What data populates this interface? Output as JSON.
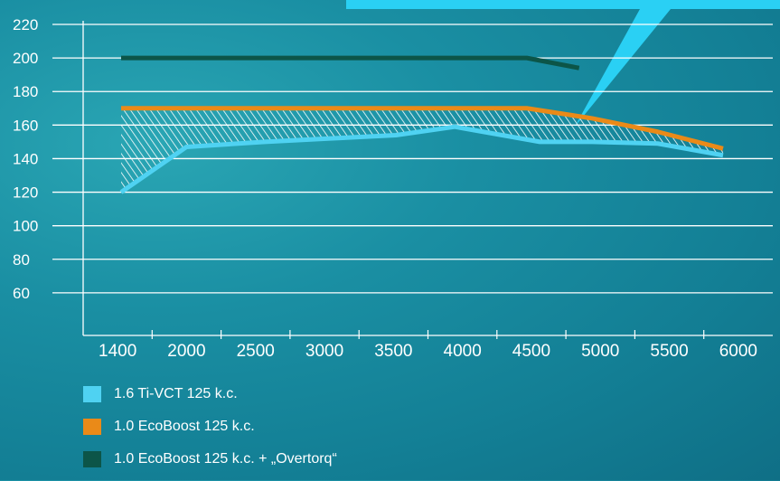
{
  "chart_data": {
    "type": "line",
    "categories": [
      "1400",
      "2000",
      "2500",
      "3000",
      "3500",
      "4000",
      "4500",
      "5000",
      "5500",
      "6000"
    ],
    "yticks": [
      "220",
      "200",
      "180",
      "160",
      "140",
      "120",
      "100",
      "80",
      "60"
    ],
    "ylim": [
      40,
      220
    ],
    "grid": true,
    "series": [
      {
        "name": "1.6 Ti-VCT 125 k.c.",
        "color": "#4fd2f2",
        "x": [
          1400,
          1900,
          2500,
          3000,
          3500,
          3950,
          4600,
          5000,
          5500,
          6000
        ],
        "values": [
          120,
          147,
          150,
          152,
          154,
          159,
          150,
          150,
          149,
          142
        ]
      },
      {
        "name": "1.0 EcoBoost 125 k.c.",
        "color": "#ea8a18",
        "x": [
          1400,
          2000,
          2500,
          3000,
          3500,
          4000,
          4500,
          5000,
          5500,
          6000
        ],
        "values": [
          170,
          170,
          170,
          170,
          170,
          170,
          170,
          164,
          156,
          146
        ]
      },
      {
        "name": "1.0 EcoBoost 125 k.c. + „Overtorq“",
        "color": "#0c5548",
        "x": [
          1400,
          2000,
          2500,
          3000,
          3500,
          4000,
          4500,
          4900
        ],
        "values": [
          200,
          200,
          200,
          200,
          200,
          200,
          200,
          194
        ]
      }
    ]
  },
  "legend": [
    {
      "label": "1.6 Ti-VCT 125 k.c.",
      "color": "#4fd2f2"
    },
    {
      "label": "1.0 EcoBoost 125 k.c.",
      "color": "#ea8a18"
    },
    {
      "label": "1.0 EcoBoost 125 k.c. + „Overtorq“",
      "color": "#0c5548"
    }
  ],
  "colors": {
    "banner": "#2ad0f4",
    "grid": "#ffffff",
    "text": "#ffffff"
  }
}
